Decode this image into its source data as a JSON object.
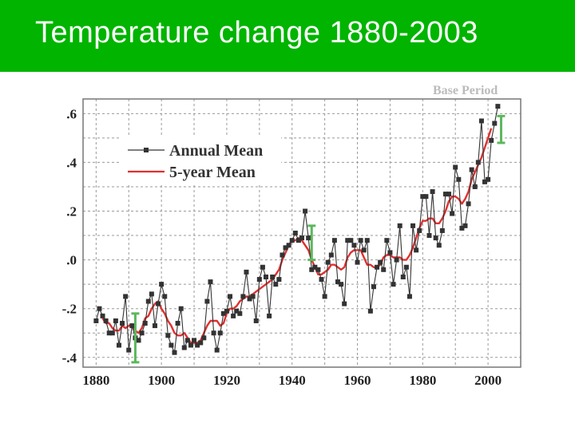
{
  "slide": {
    "title": "Temperature change 1880-2003"
  },
  "colors": {
    "title_bar": "#00b400",
    "annual": "#333333",
    "five_year": "#e03030",
    "error_bars": "#5cb85c",
    "grid": "#999999"
  },
  "chart_data": {
    "type": "line",
    "title": "",
    "xlabel": "",
    "ylabel": "",
    "corner_label": "Base Period",
    "xlim": [
      1876,
      2010
    ],
    "ylim": [
      -0.44,
      0.66
    ],
    "xticks": [
      1880,
      1900,
      1920,
      1940,
      1960,
      1980,
      2000
    ],
    "yticks": [
      -0.4,
      -0.2,
      0.0,
      0.2,
      0.4,
      0.6
    ],
    "ytick_labels": [
      "-.4",
      "-.2",
      ".0",
      ".2",
      ".4",
      ".6"
    ],
    "grid": true,
    "legend_position": "top-left",
    "series": [
      {
        "name": "Annual Mean",
        "marker": "square",
        "x": [
          1880,
          1881,
          1882,
          1883,
          1884,
          1885,
          1886,
          1887,
          1888,
          1889,
          1890,
          1891,
          1892,
          1893,
          1894,
          1895,
          1896,
          1897,
          1898,
          1899,
          1900,
          1901,
          1902,
          1903,
          1904,
          1905,
          1906,
          1907,
          1908,
          1909,
          1910,
          1911,
          1912,
          1913,
          1914,
          1915,
          1916,
          1917,
          1918,
          1919,
          1920,
          1921,
          1922,
          1923,
          1924,
          1925,
          1926,
          1927,
          1928,
          1929,
          1930,
          1931,
          1932,
          1933,
          1934,
          1935,
          1936,
          1937,
          1938,
          1939,
          1940,
          1941,
          1942,
          1943,
          1944,
          1945,
          1946,
          1947,
          1948,
          1949,
          1950,
          1951,
          1952,
          1953,
          1954,
          1955,
          1956,
          1957,
          1958,
          1959,
          1960,
          1961,
          1962,
          1963,
          1964,
          1965,
          1966,
          1967,
          1968,
          1969,
          1970,
          1971,
          1972,
          1973,
          1974,
          1975,
          1976,
          1977,
          1978,
          1979,
          1980,
          1981,
          1982,
          1983,
          1984,
          1985,
          1986,
          1987,
          1988,
          1989,
          1990,
          1991,
          1992,
          1993,
          1994,
          1995,
          1996,
          1997,
          1998,
          1999,
          2000,
          2001,
          2002,
          2003
        ],
        "values": [
          -0.25,
          -0.2,
          -0.23,
          -0.25,
          -0.3,
          -0.3,
          -0.25,
          -0.35,
          -0.26,
          -0.15,
          -0.37,
          -0.27,
          -0.32,
          -0.33,
          -0.3,
          -0.26,
          -0.17,
          -0.14,
          -0.27,
          -0.18,
          -0.1,
          -0.15,
          -0.31,
          -0.35,
          -0.38,
          -0.26,
          -0.2,
          -0.36,
          -0.33,
          -0.35,
          -0.33,
          -0.35,
          -0.34,
          -0.32,
          -0.17,
          -0.09,
          -0.3,
          -0.37,
          -0.3,
          -0.22,
          -0.21,
          -0.15,
          -0.23,
          -0.21,
          -0.22,
          -0.15,
          -0.05,
          -0.16,
          -0.15,
          -0.25,
          -0.08,
          -0.03,
          -0.07,
          -0.23,
          -0.07,
          -0.1,
          -0.08,
          0.02,
          0.05,
          0.06,
          0.08,
          0.11,
          0.08,
          0.09,
          0.2,
          0.09,
          -0.04,
          -0.03,
          -0.04,
          -0.08,
          -0.15,
          -0.01,
          0.02,
          0.08,
          -0.09,
          -0.1,
          -0.18,
          0.08,
          0.08,
          0.06,
          -0.01,
          0.08,
          0.04,
          0.08,
          -0.21,
          -0.11,
          -0.03,
          -0.01,
          -0.04,
          0.08,
          0.03,
          -0.1,
          0.0,
          0.14,
          -0.07,
          -0.03,
          -0.15,
          0.14,
          0.04,
          0.12,
          0.26,
          0.26,
          0.1,
          0.28,
          0.09,
          0.06,
          0.12,
          0.27,
          0.27,
          0.19,
          0.38,
          0.33,
          0.13,
          0.14,
          0.23,
          0.37,
          0.3,
          0.4,
          0.57,
          0.32,
          0.33,
          0.49,
          0.56,
          0.63
        ]
      },
      {
        "name": "5-year Mean",
        "x": [
          1882,
          1883,
          1884,
          1885,
          1886,
          1887,
          1888,
          1889,
          1890,
          1891,
          1892,
          1893,
          1894,
          1895,
          1896,
          1897,
          1898,
          1899,
          1900,
          1901,
          1902,
          1903,
          1904,
          1905,
          1906,
          1907,
          1908,
          1909,
          1910,
          1911,
          1912,
          1913,
          1914,
          1915,
          1916,
          1917,
          1918,
          1919,
          1920,
          1921,
          1922,
          1923,
          1924,
          1925,
          1926,
          1927,
          1928,
          1929,
          1930,
          1931,
          1932,
          1933,
          1934,
          1935,
          1936,
          1937,
          1938,
          1939,
          1940,
          1941,
          1942,
          1943,
          1944,
          1945,
          1946,
          1947,
          1948,
          1949,
          1950,
          1951,
          1952,
          1953,
          1954,
          1955,
          1956,
          1957,
          1958,
          1959,
          1960,
          1961,
          1962,
          1963,
          1964,
          1965,
          1966,
          1967,
          1968,
          1969,
          1970,
          1971,
          1972,
          1973,
          1974,
          1975,
          1976,
          1977,
          1978,
          1979,
          1980,
          1981,
          1982,
          1983,
          1984,
          1985,
          1986,
          1987,
          1988,
          1989,
          1990,
          1991,
          1992,
          1993,
          1994,
          1995,
          1996,
          1997,
          1998,
          1999,
          2000,
          2001
        ],
        "values": [
          -0.24,
          -0.26,
          -0.26,
          -0.28,
          -0.29,
          -0.29,
          -0.27,
          -0.28,
          -0.27,
          -0.27,
          -0.29,
          -0.3,
          -0.28,
          -0.24,
          -0.23,
          -0.2,
          -0.18,
          -0.17,
          -0.2,
          -0.22,
          -0.25,
          -0.27,
          -0.3,
          -0.31,
          -0.31,
          -0.3,
          -0.32,
          -0.34,
          -0.34,
          -0.34,
          -0.33,
          -0.3,
          -0.27,
          -0.25,
          -0.25,
          -0.25,
          -0.27,
          -0.26,
          -0.22,
          -0.2,
          -0.2,
          -0.19,
          -0.17,
          -0.16,
          -0.15,
          -0.15,
          -0.14,
          -0.13,
          -0.12,
          -0.11,
          -0.1,
          -0.09,
          -0.08,
          -0.06,
          -0.04,
          0.0,
          0.03,
          0.06,
          0.08,
          0.08,
          0.09,
          0.08,
          0.06,
          0.04,
          0.0,
          -0.03,
          -0.06,
          -0.06,
          -0.05,
          -0.04,
          -0.02,
          -0.02,
          -0.03,
          -0.04,
          -0.03,
          0.01,
          0.03,
          0.04,
          0.04,
          0.04,
          0.01,
          -0.02,
          -0.02,
          -0.03,
          -0.03,
          -0.02,
          0.01,
          0.02,
          0.02,
          0.01,
          0.01,
          0.01,
          0.0,
          0.0,
          0.02,
          0.05,
          0.09,
          0.13,
          0.16,
          0.16,
          0.17,
          0.17,
          0.15,
          0.15,
          0.17,
          0.2,
          0.24,
          0.26,
          0.26,
          0.25,
          0.23,
          0.25,
          0.28,
          0.33,
          0.36,
          0.39,
          0.42,
          0.46,
          0.5,
          0.54
        ]
      }
    ],
    "error_bars": [
      {
        "x": 1892,
        "low": -0.42,
        "high": -0.22
      },
      {
        "x": 1946,
        "low": 0.0,
        "high": 0.14
      },
      {
        "x": 2004,
        "low": 0.48,
        "high": 0.59
      }
    ]
  }
}
